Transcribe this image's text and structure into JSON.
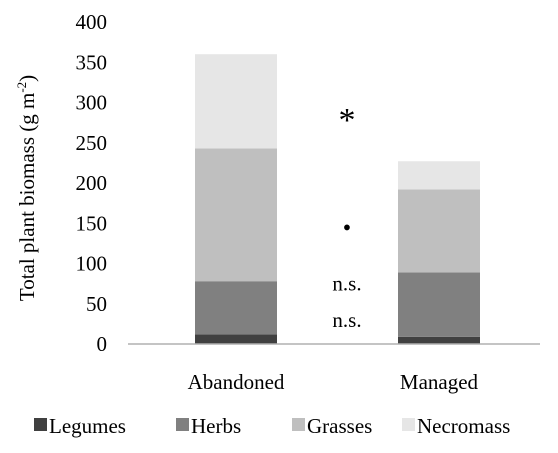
{
  "chart_data": {
    "type": "bar",
    "stacked": true,
    "categories": [
      "Abandoned",
      "Managed"
    ],
    "series": [
      {
        "name": "Legumes",
        "values": [
          12,
          9
        ],
        "color": "#404040"
      },
      {
        "name": "Herbs",
        "values": [
          66,
          80
        ],
        "color": "#808080"
      },
      {
        "name": "Grasses",
        "values": [
          165,
          103
        ],
        "color": "#bfbfbf"
      },
      {
        "name": "Necromass",
        "values": [
          117,
          35
        ],
        "color": "#e6e6e6"
      }
    ],
    "ylabel_main": "Total plant biomass (g m",
    "ylabel_sup": "-2",
    "ylabel_close": ")",
    "ylim": [
      0,
      400
    ],
    "yticks": [
      0,
      50,
      100,
      150,
      200,
      250,
      300,
      350,
      400
    ],
    "grid": false,
    "legend_position": "bottom",
    "annotations": [
      {
        "text": "*",
        "y": 288
      },
      {
        "text": "•",
        "y": 145
      },
      {
        "text": "n.s.",
        "y": 75
      },
      {
        "text": "n.s.",
        "y": 30
      }
    ]
  }
}
